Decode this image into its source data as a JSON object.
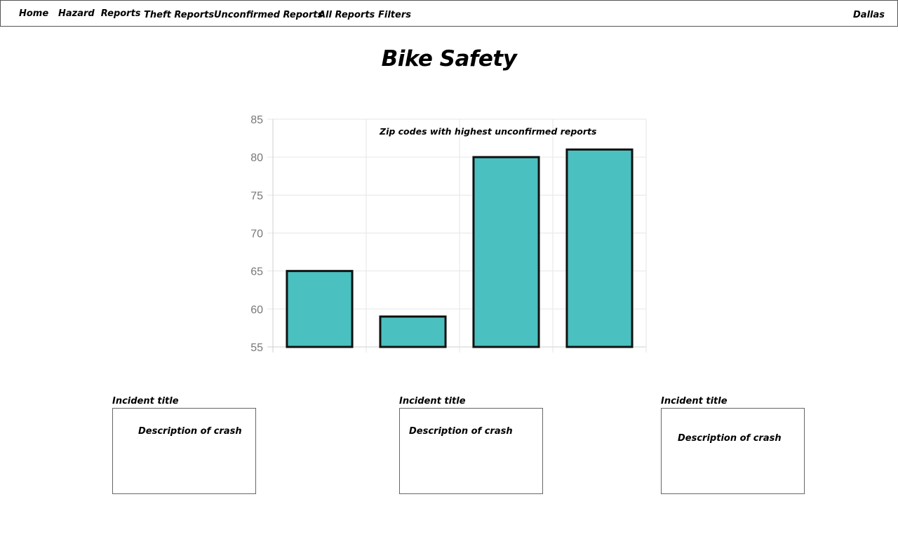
{
  "nav": {
    "items": [
      {
        "label": "Home"
      },
      {
        "label": "Hazard  Reports"
      },
      {
        "label": "Theft Reports"
      },
      {
        "label": "Unconfirmed Reports"
      },
      {
        "label": "All Reports"
      },
      {
        "label": "Filters"
      }
    ],
    "city": "Dallas"
  },
  "page": {
    "title": "Bike Safety"
  },
  "chart_data": {
    "type": "bar",
    "title": "Zip codes with highest unconfirmed reports",
    "categories": [
      "",
      "",
      "",
      ""
    ],
    "values": [
      65,
      59,
      80,
      81
    ],
    "ylim": [
      55,
      85
    ],
    "yticks": [
      55,
      60,
      65,
      70,
      75,
      80,
      85
    ],
    "grid": true,
    "bar_color": "#4bc0c0",
    "bar_border_color": "#111111"
  },
  "incidents": [
    {
      "title": "Incident title",
      "description": "Description of crash"
    },
    {
      "title": "Incident title",
      "description": "Description of crash"
    },
    {
      "title": "Incident title",
      "description": "Description of crash"
    }
  ]
}
